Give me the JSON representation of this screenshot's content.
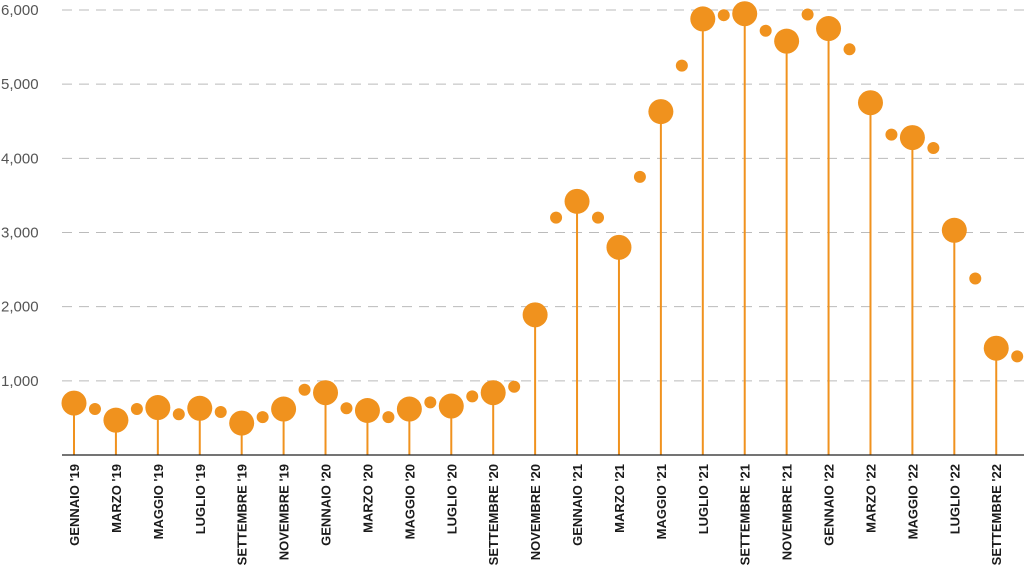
{
  "chart_data": {
    "type": "scatter",
    "style": "lollipop",
    "color": "#F0921E",
    "gridline_color": "#BBBBBB",
    "axis_color": "#222222",
    "grid": true,
    "ylim": [
      0,
      6000
    ],
    "y_ticks": [
      {
        "value": 1000,
        "label": "1,000"
      },
      {
        "value": 2000,
        "label": "2,000"
      },
      {
        "value": 3000,
        "label": "3,000"
      },
      {
        "value": 4000,
        "label": "4,000"
      },
      {
        "value": 5000,
        "label": "5,000"
      },
      {
        "value": 6000,
        "label": "6,000"
      }
    ],
    "x_labels": [
      "GENNAIO '19",
      "MARZO '19",
      "MAGGIO '19",
      "LUGLIO '19",
      "SETTEMBRE '19",
      "NOVEMBRE '19",
      "GENNAIO '20",
      "MARZO '20",
      "MAGGIO '20",
      "LUGLIO '20",
      "SETTEMBRE '20",
      "NOVEMBRE '20",
      "GENNAIO '21",
      "MARZO '21",
      "MAGGIO '21",
      "LUGLIO '21",
      "SETTEMBRE '21",
      "NOVEMBRE '21",
      "GENNAIO '22",
      "MARZO '22",
      "MAGGIO '22",
      "LUGLIO '22",
      "SETTEMBRE '22"
    ],
    "x": [
      "2019-01",
      "2019-02",
      "2019-03",
      "2019-04",
      "2019-05",
      "2019-06",
      "2019-07",
      "2019-08",
      "2019-09",
      "2019-10",
      "2019-11",
      "2019-12",
      "2020-01",
      "2020-02",
      "2020-03",
      "2020-04",
      "2020-05",
      "2020-06",
      "2020-07",
      "2020-08",
      "2020-09",
      "2020-10",
      "2020-11",
      "2020-12",
      "2021-01",
      "2021-02",
      "2021-03",
      "2021-04",
      "2021-05",
      "2021-06",
      "2021-07",
      "2021-08",
      "2021-09",
      "2021-10",
      "2021-11",
      "2021-12",
      "2022-01",
      "2022-02",
      "2022-03",
      "2022-04",
      "2022-05",
      "2022-06",
      "2022-07",
      "2022-08",
      "2022-09",
      "2022-10"
    ],
    "values": [
      700,
      620,
      470,
      620,
      640,
      550,
      630,
      580,
      430,
      510,
      620,
      880,
      840,
      630,
      600,
      510,
      620,
      710,
      660,
      790,
      840,
      920,
      1890,
      3200,
      3420,
      3200,
      2800,
      3750,
      4630,
      5250,
      5880,
      5930,
      5950,
      5720,
      5580,
      5940,
      5750,
      5470,
      4750,
      4320,
      4280,
      4140,
      3030,
      2380,
      1440,
      1330
    ]
  }
}
